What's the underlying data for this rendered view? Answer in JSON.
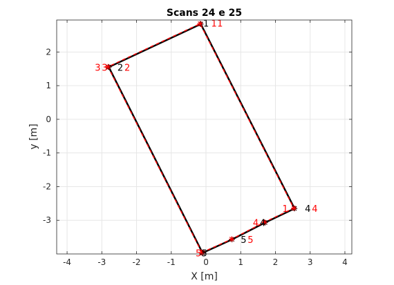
{
  "chart_data": {
    "type": "line",
    "title": "Scans 24 e 25",
    "xlabel": "X [m]",
    "ylabel": "y [m]",
    "xlim": [
      -4.3,
      4.2
    ],
    "ylim": [
      -4.0,
      2.95
    ],
    "xticks": [
      -4,
      -3,
      -2,
      -1,
      0,
      1,
      2,
      3,
      4
    ],
    "yticks": [
      -3,
      -2,
      -1,
      0,
      1,
      2
    ],
    "xtick_labels": [
      "-4",
      "-3",
      "-2",
      "-1",
      "0",
      "1",
      "2",
      "3",
      "4"
    ],
    "ytick_labels": [
      "-3",
      "-2",
      "-1",
      "0",
      "1",
      "2"
    ],
    "grid": true,
    "colors": {
      "scan_a": "#000000",
      "scan_b": "#ff0000",
      "grid": "#e6e6e6",
      "axis": "#262626"
    },
    "series": [
      {
        "key": "scan_a",
        "x": [
          -0.1,
          0.75,
          1.7,
          2.55,
          -0.15,
          -2.8,
          -0.1
        ],
        "y": [
          -3.97,
          -3.57,
          -3.07,
          -2.65,
          2.83,
          1.55,
          -3.97
        ]
      },
      {
        "key": "scan_b",
        "x": [
          -0.12,
          0.74,
          1.68,
          2.53,
          -0.17,
          -2.82,
          -0.12
        ],
        "y": [
          -3.96,
          -3.56,
          -3.06,
          -2.64,
          2.84,
          1.56,
          -3.96
        ]
      }
    ],
    "labels": [
      {
        "text": "1",
        "x": -0.08,
        "y": 2.86,
        "color": "scan_a"
      },
      {
        "text": "1",
        "x": 0.15,
        "y": 2.86,
        "color": "scan_b"
      },
      {
        "text": "1",
        "x": 0.32,
        "y": 2.86,
        "color": "scan_b"
      },
      {
        "text": "2",
        "x": -2.55,
        "y": 1.55,
        "color": "scan_a"
      },
      {
        "text": "2",
        "x": -2.35,
        "y": 1.55,
        "color": "scan_b"
      },
      {
        "text": "3",
        "x": -3.2,
        "y": 1.55,
        "color": "scan_b"
      },
      {
        "text": "3",
        "x": -3.0,
        "y": 1.55,
        "color": "scan_b"
      },
      {
        "text": "4",
        "x": 2.85,
        "y": -2.65,
        "color": "scan_a"
      },
      {
        "text": "4",
        "x": 3.05,
        "y": -2.65,
        "color": "scan_b"
      },
      {
        "text": "1",
        "x": 2.2,
        "y": -2.65,
        "color": "scan_b"
      },
      {
        "text": "4",
        "x": 1.35,
        "y": -3.07,
        "color": "scan_b"
      },
      {
        "text": "4",
        "x": 1.55,
        "y": -3.07,
        "color": "scan_a"
      },
      {
        "text": "5",
        "x": 1.0,
        "y": -3.57,
        "color": "scan_a"
      },
      {
        "text": "5",
        "x": 1.2,
        "y": -3.57,
        "color": "scan_b"
      },
      {
        "text": "5",
        "x": -0.3,
        "y": -3.97,
        "color": "scan_b"
      },
      {
        "text": "5",
        "x": -0.13,
        "y": -3.97,
        "color": "scan_a"
      }
    ]
  }
}
